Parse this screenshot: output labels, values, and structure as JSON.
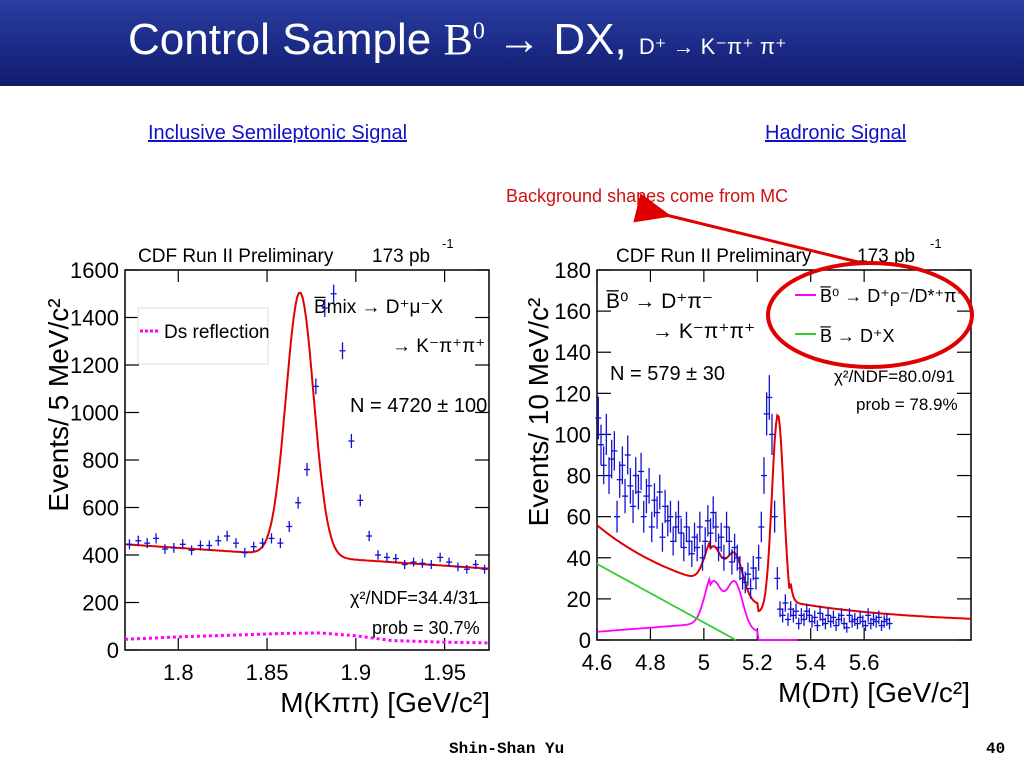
{
  "slide": {
    "title_main": "Control Sample",
    "title_b": "B",
    "title_b_sup": "0",
    "title_arrow": "→",
    "title_dx": "DX,",
    "title_sub": "D⁺ → K⁻π⁺ π⁺",
    "link_left": "Inclusive  Semileptonic Signal",
    "link_right": "Hadronic Signal",
    "annotation": "Background shapes come from MC",
    "footer_author": "Shin-Shan Yu",
    "footer_page": "40"
  },
  "colors": {
    "header": "#1b2a86",
    "link": "#1010c8",
    "annotation": "#d01010",
    "fit": "#e00000",
    "data": "#1010d0",
    "ds_reflection": "#ff00ff",
    "b0_bkg": "#ff00ff",
    "b_bkg": "#33cc33"
  },
  "chart_data": [
    {
      "type": "scatter",
      "header": "CDF Run II Preliminary",
      "lumi": "173 pb",
      "lumi_sup": "-1",
      "xlabel": "M(Kππ) [GeV/c²]",
      "ylabel": "Events/ 5 MeV/c²",
      "xlim": [
        1.77,
        1.975
      ],
      "ylim": [
        0,
        1600
      ],
      "xticks": [
        1.8,
        1.85,
        1.9,
        1.95
      ],
      "xtick_labels": [
        "1.8",
        "1.85",
        "1.9",
        "1.95"
      ],
      "yticks": [
        0,
        200,
        400,
        600,
        800,
        1000,
        1200,
        1400,
        1600
      ],
      "ytick_labels": [
        "0",
        "200",
        "400",
        "600",
        "800",
        "1000",
        "1200",
        "1400",
        "1600"
      ],
      "legend": "Ds reflection",
      "decay_line1": "B̅mix → D⁺μ⁻X",
      "decay_line2": "→ K⁻π⁺π⁺",
      "yield": "N = 4720 ± 100",
      "chi2": "χ²/NDF=34.4/31",
      "prob": "prob = 30.7%",
      "series": [
        {
          "name": "data",
          "x": [
            1.7725,
            1.7775,
            1.7825,
            1.7875,
            1.7925,
            1.7975,
            1.8025,
            1.8075,
            1.8125,
            1.8175,
            1.8225,
            1.8275,
            1.8325,
            1.8375,
            1.8425,
            1.8475,
            1.8525,
            1.8575,
            1.8625,
            1.8675,
            1.8725,
            1.8775,
            1.8825,
            1.8875,
            1.8925,
            1.8975,
            1.9025,
            1.9075,
            1.9125,
            1.9175,
            1.9225,
            1.9275,
            1.9325,
            1.9375,
            1.9425,
            1.9475,
            1.9525,
            1.9575,
            1.9625,
            1.9675,
            1.9725
          ],
          "y": [
            445,
            460,
            450,
            470,
            425,
            430,
            445,
            420,
            440,
            440,
            460,
            480,
            450,
            410,
            435,
            450,
            470,
            450,
            520,
            620,
            760,
            1110,
            1440,
            1500,
            1260,
            880,
            630,
            480,
            400,
            390,
            385,
            360,
            370,
            365,
            360,
            390,
            370,
            350,
            340,
            360,
            340
          ]
        },
        {
          "name": "fit",
          "x": [],
          "y": []
        },
        {
          "name": "Ds reflection",
          "x": [
            1.77,
            1.8,
            1.84,
            1.86,
            1.88,
            1.9,
            1.92,
            1.95,
            1.975
          ],
          "y": [
            45,
            55,
            65,
            70,
            72,
            60,
            40,
            33,
            30
          ]
        }
      ]
    },
    {
      "type": "scatter",
      "header": "CDF Run II Preliminary",
      "lumi": "173 pb",
      "lumi_sup": "-1",
      "xlabel": "M(Dπ) [GeV/c²]",
      "ylabel": "Events/ 10 MeV/c²",
      "xlim": [
        4.6,
        6.0
      ],
      "ylim": [
        0,
        180
      ],
      "xticks": [
        4.6,
        4.8,
        5.0,
        5.2,
        5.4,
        5.6
      ],
      "xtick_labels": [
        "4.6",
        "4.8",
        "5",
        "5.2",
        "5.4",
        "5.6"
      ],
      "yticks": [
        0,
        20,
        40,
        60,
        80,
        100,
        120,
        140,
        160,
        180
      ],
      "ytick_labels": [
        "0",
        "20",
        "40",
        "60",
        "80",
        "100",
        "120",
        "140",
        "160",
        "180"
      ],
      "decay_line1": "B̅⁰ → D⁺π⁻",
      "decay_line2": "→ K⁻π⁺π⁺",
      "yield": "N = 579 ± 30",
      "legend": [
        "B̅⁰ → D⁺ρ⁻/D*⁺π⁻",
        "B̅ → D⁺X"
      ],
      "chi2": "χ²/NDF=80.0/91",
      "prob": "prob = 78.9%",
      "series": [
        {
          "name": "data",
          "x": [
            4.605,
            4.615,
            4.625,
            4.635,
            4.645,
            4.655,
            4.665,
            4.675,
            4.685,
            4.695,
            4.705,
            4.715,
            4.725,
            4.735,
            4.745,
            4.755,
            4.765,
            4.775,
            4.785,
            4.795,
            4.805,
            4.815,
            4.825,
            4.835,
            4.845,
            4.855,
            4.865,
            4.875,
            4.885,
            4.895,
            4.905,
            4.915,
            4.925,
            4.935,
            4.945,
            4.955,
            4.965,
            4.975,
            4.985,
            4.995,
            5.005,
            5.015,
            5.025,
            5.035,
            5.045,
            5.055,
            5.065,
            5.075,
            5.085,
            5.095,
            5.105,
            5.115,
            5.125,
            5.135,
            5.145,
            5.155,
            5.165,
            5.175,
            5.185,
            5.195,
            5.205,
            5.215,
            5.225,
            5.235,
            5.245,
            5.255,
            5.265,
            5.275,
            5.285,
            5.295,
            5.305,
            5.315,
            5.325,
            5.335,
            5.345,
            5.355,
            5.365,
            5.375,
            5.385,
            5.395,
            5.405,
            5.415,
            5.425,
            5.435,
            5.445,
            5.455,
            5.465,
            5.475,
            5.485,
            5.495,
            5.505,
            5.515,
            5.525,
            5.535,
            5.545,
            5.555,
            5.565,
            5.575,
            5.585,
            5.595,
            5.605,
            5.615,
            5.625,
            5.635,
            5.645,
            5.655,
            5.665,
            5.675,
            5.685,
            5.695
          ],
          "y": [
            108,
            95,
            85,
            100,
            80,
            88,
            92,
            60,
            78,
            85,
            70,
            90,
            75,
            65,
            80,
            72,
            82,
            60,
            70,
            75,
            55,
            68,
            62,
            72,
            50,
            65,
            58,
            60,
            48,
            55,
            60,
            52,
            45,
            55,
            48,
            42,
            50,
            45,
            55,
            40,
            48,
            58,
            52,
            62,
            55,
            45,
            50,
            40,
            55,
            48,
            38,
            45,
            40,
            35,
            30,
            28,
            32,
            25,
            35,
            30,
            40,
            55,
            80,
            110,
            118,
            100,
            60,
            30,
            15,
            12,
            18,
            10,
            15,
            12,
            14,
            8,
            12,
            10,
            14,
            12,
            9,
            11,
            7,
            13,
            10,
            8,
            12,
            9,
            11,
            7,
            10,
            12,
            8,
            6,
            12,
            9,
            10,
            8,
            11,
            9,
            7,
            12,
            8,
            10,
            9,
            11,
            7,
            9,
            10,
            8
          ]
        },
        {
          "name": "fit",
          "x": [],
          "y": []
        },
        {
          "name": "B̅⁰ → D⁺ρ⁻/D*⁺π⁻",
          "x": [],
          "y": []
        },
        {
          "name": "B̅ → D⁺X",
          "x": [
            4.6,
            5.12
          ],
          "y": [
            37,
            0
          ]
        }
      ]
    }
  ]
}
